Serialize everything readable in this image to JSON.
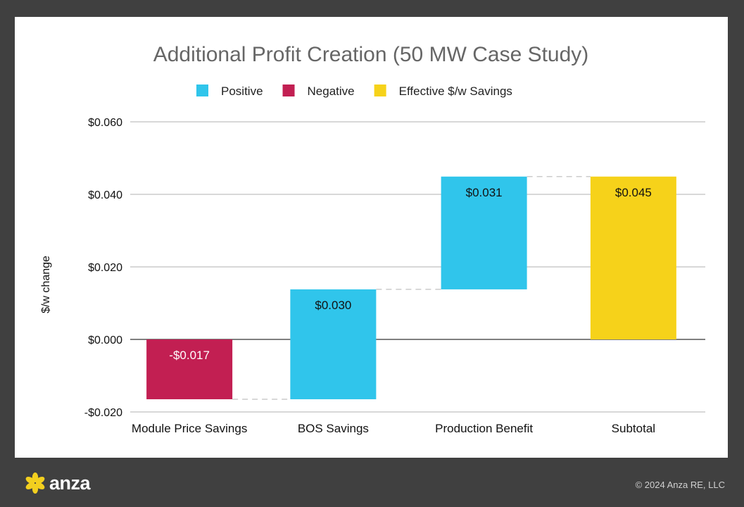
{
  "chart_data": {
    "type": "waterfall",
    "title": "Additional Profit Creation (50 MW Case Study)",
    "ylabel": "$/w change",
    "xlabel": "",
    "ylim": [
      -0.02,
      0.06
    ],
    "yticks": [
      -0.02,
      0,
      0.02,
      0.04,
      0.06
    ],
    "ytick_labels": [
      "-$0.020",
      "$0.000",
      "$0.020",
      "$0.040",
      "$0.060"
    ],
    "grid": true,
    "legend_position": "top",
    "legend": [
      {
        "name": "Positive",
        "color": "#30c5eb"
      },
      {
        "name": "Negative",
        "color": "#c21f52"
      },
      {
        "name": "Effective $/w Savings",
        "color": "#f6d21a"
      }
    ],
    "categories": [
      "Module Price Savings",
      "BOS Savings",
      "Production Benefit",
      "Subtotal"
    ],
    "bars": [
      {
        "category": "Module Price Savings",
        "value": -0.0165,
        "label": "-$0.017",
        "kind": "Negative"
      },
      {
        "category": "BOS Savings",
        "value": 0.0303,
        "label": "$0.030",
        "kind": "Positive"
      },
      {
        "category": "Production Benefit",
        "value": 0.0311,
        "label": "$0.031",
        "kind": "Positive"
      },
      {
        "category": "Subtotal",
        "value": 0.0449,
        "label": "$0.045",
        "kind": "Effective $/w Savings",
        "total": true
      }
    ]
  },
  "footer": {
    "logo_text": "anza",
    "copyright": "© 2024 Anza RE, LLC"
  }
}
